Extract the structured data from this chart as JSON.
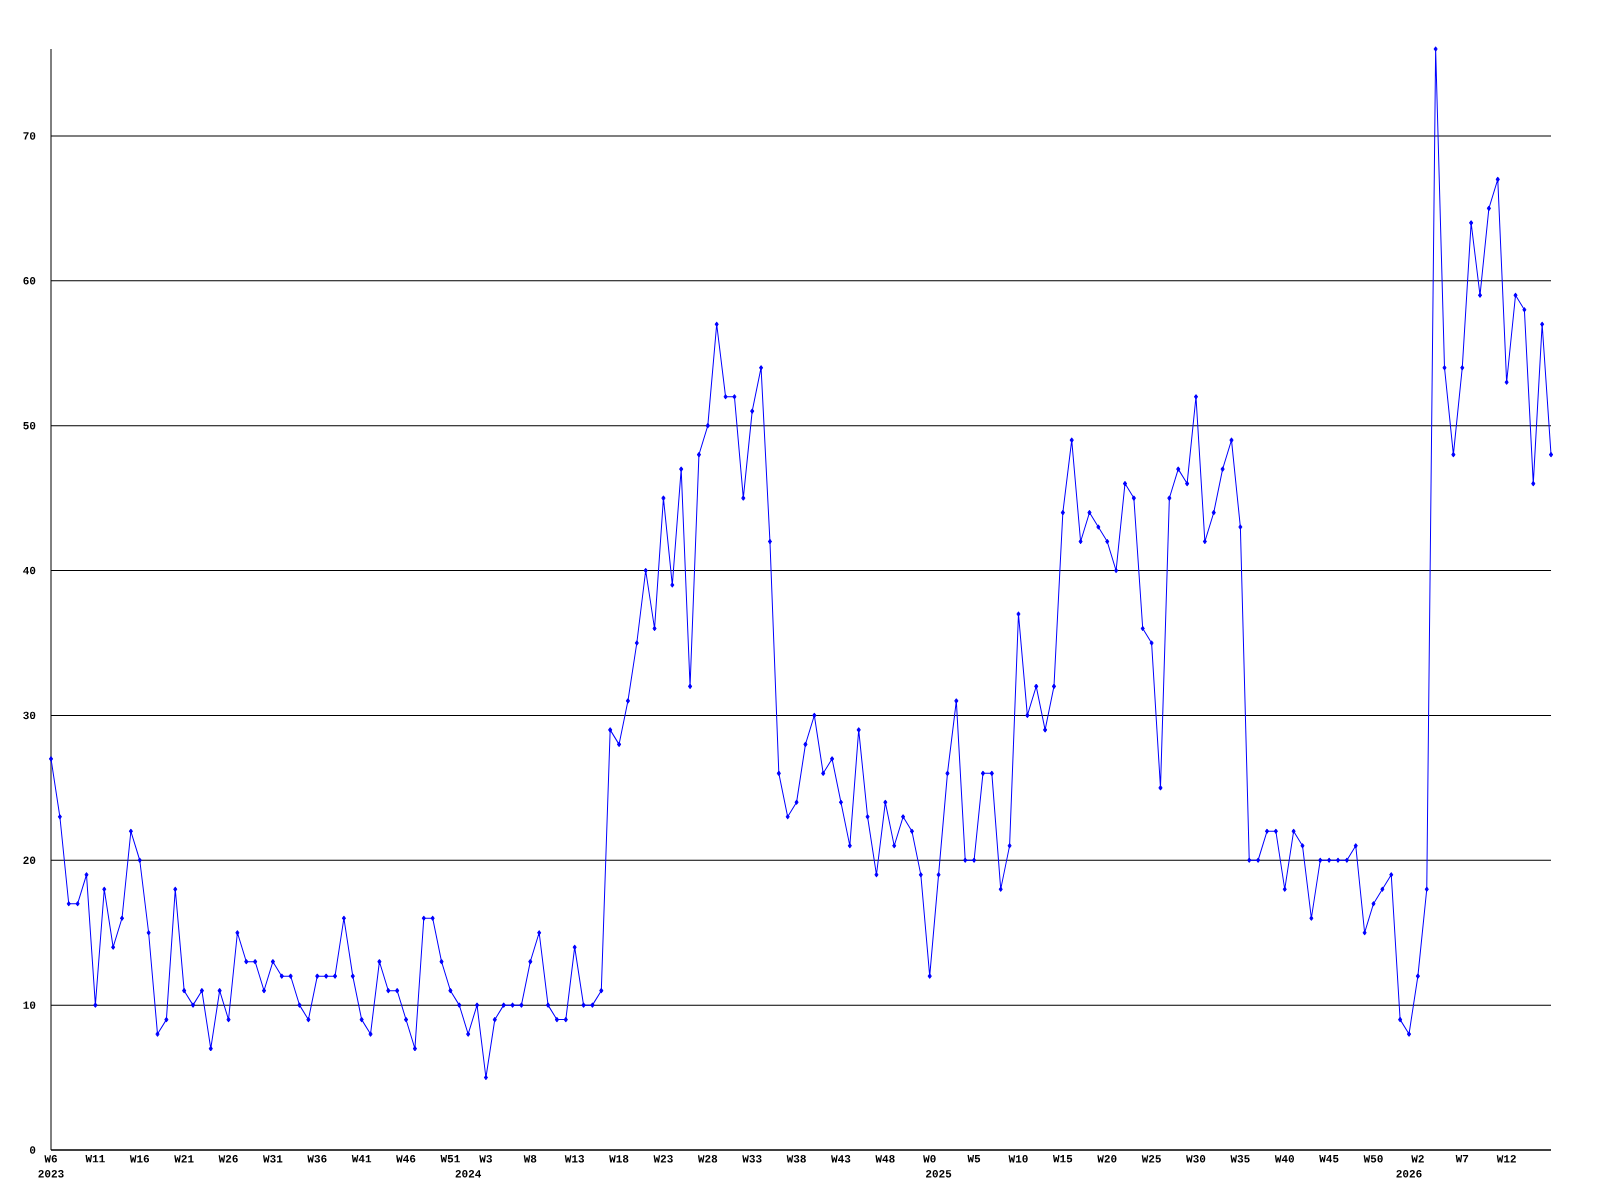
{
  "chart_data": {
    "type": "line",
    "color": "#0000ff",
    "marker": "diamond",
    "grid": "y",
    "x": [
      "2023-02-06",
      "2023-02-13",
      "2023-02-20",
      "2023-02-27",
      "2023-03-06",
      "2023-03-13",
      "2023-03-20",
      "2023-03-27",
      "2023-04-03",
      "2023-04-10",
      "2023-04-17",
      "2023-04-24",
      "2023-05-01",
      "2023-05-08",
      "2023-05-15",
      "2023-05-22",
      "2023-05-29",
      "2023-06-05",
      "2023-06-12",
      "2023-06-19",
      "2023-06-26",
      "2023-07-03",
      "2023-07-10",
      "2023-07-17",
      "2023-07-24",
      "2023-07-31",
      "2023-08-07",
      "2023-08-14",
      "2023-08-21",
      "2023-08-28",
      "2023-09-04",
      "2023-09-11",
      "2023-09-18",
      "2023-09-25",
      "2023-10-02",
      "2023-10-09",
      "2023-10-16",
      "2023-10-23",
      "2023-10-30",
      "2023-11-06",
      "2023-11-13",
      "2023-11-20",
      "2023-11-27",
      "2023-12-04",
      "2023-12-11",
      "2023-12-18",
      "2023-12-25",
      "2024-01-01",
      "2024-01-08",
      "2024-01-15",
      "2024-01-22",
      "2024-01-29",
      "2024-02-05",
      "2024-02-12",
      "2024-02-19",
      "2024-02-26",
      "2024-03-04",
      "2024-03-11",
      "2024-03-18",
      "2024-03-25",
      "2024-04-01",
      "2024-04-08",
      "2024-04-15",
      "2024-04-22",
      "2024-04-29",
      "2024-05-06",
      "2024-05-13",
      "2024-05-20",
      "2024-05-27",
      "2024-06-03",
      "2024-06-10",
      "2024-06-17",
      "2024-06-24",
      "2024-07-01",
      "2024-07-08",
      "2024-07-15",
      "2024-07-22",
      "2024-07-29",
      "2024-08-05",
      "2024-08-12",
      "2024-08-19",
      "2024-08-26",
      "2024-09-02",
      "2024-09-09",
      "2024-09-16",
      "2024-09-23",
      "2024-09-30",
      "2024-10-07",
      "2024-10-14",
      "2024-10-21",
      "2024-10-28",
      "2024-11-04",
      "2024-11-11",
      "2024-11-18",
      "2024-11-25",
      "2024-12-02",
      "2024-12-09",
      "2024-12-16",
      "2024-12-23",
      "2024-12-30",
      "2025-01-06",
      "2025-01-13",
      "2025-01-20",
      "2025-01-27",
      "2025-02-03",
      "2025-02-10",
      "2025-02-17",
      "2025-02-24",
      "2025-03-03",
      "2025-03-10",
      "2025-03-17",
      "2025-03-24",
      "2025-03-31",
      "2025-04-07",
      "2025-04-14",
      "2025-04-21",
      "2025-04-28",
      "2025-05-05",
      "2025-05-12",
      "2025-05-19",
      "2025-05-26",
      "2025-06-02",
      "2025-06-09",
      "2025-06-16",
      "2025-06-23",
      "2025-06-30",
      "2025-07-07",
      "2025-07-14",
      "2025-07-21",
      "2025-07-28",
      "2025-08-04",
      "2025-08-11",
      "2025-08-18",
      "2025-08-25",
      "2025-09-01",
      "2025-09-08",
      "2025-09-15",
      "2025-09-22",
      "2025-09-29",
      "2025-10-06",
      "2025-10-13",
      "2025-10-20",
      "2025-10-27",
      "2025-11-03",
      "2025-11-10",
      "2025-11-17",
      "2025-11-24",
      "2025-12-01",
      "2025-12-08",
      "2025-12-15",
      "2025-12-22",
      "2025-12-29",
      "2026-01-05",
      "2026-01-12",
      "2026-01-19",
      "2026-01-26",
      "2026-02-02",
      "2026-02-09",
      "2026-02-16",
      "2026-02-23",
      "2026-03-02",
      "2026-03-09",
      "2026-03-16",
      "2026-03-23",
      "2026-03-30",
      "2026-04-06",
      "2026-04-13",
      "2026-04-20",
      "2026-04-27",
      "2026-05-04"
    ],
    "values": [
      27,
      23,
      17,
      17,
      19,
      10,
      18,
      14,
      16,
      22,
      20,
      15,
      8,
      9,
      18,
      11,
      10,
      11,
      7,
      11,
      9,
      15,
      13,
      13,
      11,
      13,
      12,
      12,
      10,
      9,
      12,
      12,
      12,
      16,
      12,
      9,
      8,
      13,
      11,
      11,
      9,
      7,
      16,
      16,
      13,
      11,
      10,
      8,
      10,
      5,
      9,
      10,
      10,
      10,
      13,
      15,
      10,
      9,
      9,
      14,
      10,
      10,
      11,
      29,
      28,
      31,
      35,
      40,
      36,
      45,
      39,
      47,
      32,
      48,
      50,
      57,
      52,
      52,
      45,
      51,
      54,
      42,
      26,
      23,
      24,
      28,
      30,
      26,
      27,
      24,
      21,
      29,
      23,
      19,
      24,
      21,
      23,
      22,
      19,
      12,
      19,
      26,
      31,
      20,
      20,
      26,
      26,
      18,
      21,
      37,
      30,
      32,
      29,
      32,
      44,
      49,
      42,
      44,
      43,
      42,
      40,
      46,
      45,
      36,
      35,
      25,
      45,
      47,
      46,
      52,
      42,
      44,
      47,
      49,
      43,
      20,
      20,
      22,
      22,
      18,
      22,
      21,
      16,
      20,
      20,
      20,
      20,
      21,
      15,
      17,
      18,
      19,
      9,
      8,
      12,
      18,
      76,
      54,
      48,
      54,
      64,
      59,
      65,
      67,
      53,
      59,
      58,
      46,
      57,
      48
    ],
    "xlim": [
      "2023-02-06",
      "2026-05-04"
    ],
    "ylim": [
      0,
      76
    ],
    "yticks": [
      0,
      10,
      20,
      30,
      40,
      50,
      60,
      70
    ],
    "xticks": [
      {
        "value": "2023-02-06",
        "label": "W6"
      },
      {
        "value": "2023-03-13",
        "label": "W11"
      },
      {
        "value": "2023-04-17",
        "label": "W16"
      },
      {
        "value": "2023-05-22",
        "label": "W21"
      },
      {
        "value": "2023-06-26",
        "label": "W26"
      },
      {
        "value": "2023-07-31",
        "label": "W31"
      },
      {
        "value": "2023-09-04",
        "label": "W36"
      },
      {
        "value": "2023-10-09",
        "label": "W41"
      },
      {
        "value": "2023-11-13",
        "label": "W46"
      },
      {
        "value": "2023-12-18",
        "label": "W51"
      },
      {
        "value": "2024-01-15",
        "label": "W3"
      },
      {
        "value": "2024-02-19",
        "label": "W8"
      },
      {
        "value": "2024-03-25",
        "label": "W13"
      },
      {
        "value": "2024-04-29",
        "label": "W18"
      },
      {
        "value": "2024-06-03",
        "label": "W23"
      },
      {
        "value": "2024-07-08",
        "label": "W28"
      },
      {
        "value": "2024-08-12",
        "label": "W33"
      },
      {
        "value": "2024-09-16",
        "label": "W38"
      },
      {
        "value": "2024-10-21",
        "label": "W43"
      },
      {
        "value": "2024-11-25",
        "label": "W48"
      },
      {
        "value": "2024-12-30",
        "label": "W0"
      },
      {
        "value": "2025-02-03",
        "label": "W5"
      },
      {
        "value": "2025-03-10",
        "label": "W10"
      },
      {
        "value": "2025-04-14",
        "label": "W15"
      },
      {
        "value": "2025-05-19",
        "label": "W20"
      },
      {
        "value": "2025-06-23",
        "label": "W25"
      },
      {
        "value": "2025-07-28",
        "label": "W30"
      },
      {
        "value": "2025-09-01",
        "label": "W35"
      },
      {
        "value": "2025-10-06",
        "label": "W40"
      },
      {
        "value": "2025-11-10",
        "label": "W45"
      },
      {
        "value": "2025-12-15",
        "label": "W50"
      },
      {
        "value": "2026-01-19",
        "label": "W2"
      },
      {
        "value": "2026-02-23",
        "label": "W7"
      },
      {
        "value": "2026-03-30",
        "label": "W12"
      }
    ],
    "x2lim": [
      "2023-02-06",
      "2026-05-04"
    ],
    "x2ticks": [
      {
        "value": "2023-02-06",
        "label": "2023"
      },
      {
        "value": "2024-01-01",
        "label": "2024"
      },
      {
        "value": "2025-01-06",
        "label": "2025"
      },
      {
        "value": "2026-01-12",
        "label": "2026"
      }
    ]
  }
}
